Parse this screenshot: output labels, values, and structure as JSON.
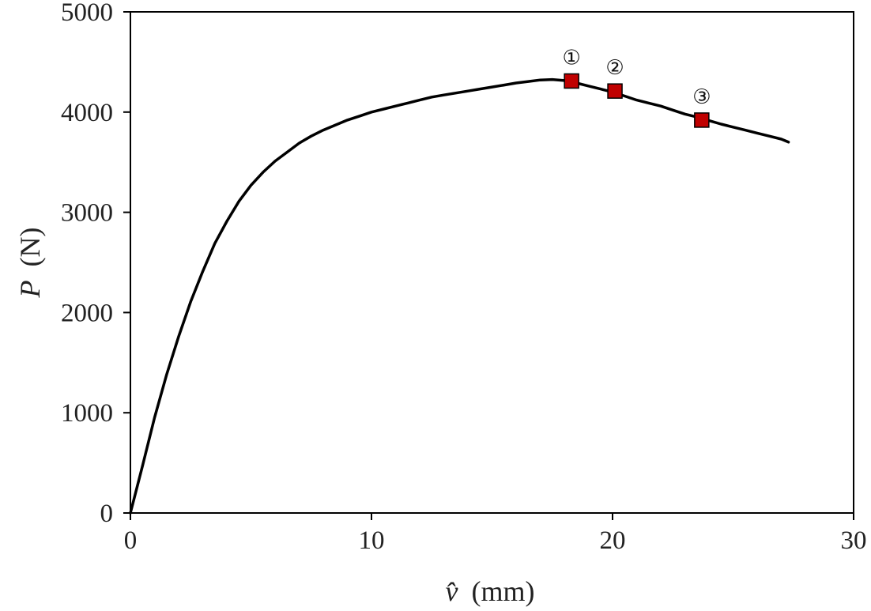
{
  "chart_data": {
    "type": "line",
    "title": "",
    "xlabel": "(mm)",
    "xlabel_symbol": "v̂",
    "ylabel": "(N)",
    "ylabel_symbol": "P",
    "xlim": [
      0,
      30
    ],
    "ylim": [
      0,
      5000
    ],
    "xticks": [
      "0",
      "10",
      "20",
      "30"
    ],
    "yticks": [
      "0",
      "1000",
      "2000",
      "3000",
      "4000",
      "5000"
    ],
    "grid": false,
    "legend": "none",
    "line_color": "#000000",
    "marker_color": "#c00000",
    "series": [
      {
        "x": [
          0,
          0.5,
          1,
          1.5,
          2,
          2.5,
          3,
          3.5,
          4,
          4.5,
          5,
          5.5,
          6,
          6.5,
          7,
          7.5,
          8,
          8.5,
          9,
          9.5,
          10,
          10.5,
          11,
          11.5,
          12,
          12.5,
          13,
          13.5,
          14,
          14.5,
          15,
          15.5,
          16,
          16.5,
          17,
          17.5,
          18,
          18.5,
          19,
          19.5,
          20,
          20.5,
          21,
          21.5,
          22,
          22.5,
          23,
          23.5,
          24,
          24.5,
          25,
          25.5,
          26,
          26.5,
          27,
          27.3
        ],
        "y": [
          0,
          470,
          950,
          1380,
          1760,
          2110,
          2410,
          2690,
          2910,
          3110,
          3270,
          3400,
          3510,
          3600,
          3690,
          3760,
          3820,
          3870,
          3920,
          3960,
          4000,
          4030,
          4060,
          4090,
          4120,
          4150,
          4170,
          4190,
          4210,
          4230,
          4250,
          4270,
          4290,
          4305,
          4320,
          4325,
          4315,
          4290,
          4260,
          4230,
          4200,
          4160,
          4120,
          4090,
          4060,
          4020,
          3980,
          3950,
          3915,
          3880,
          3850,
          3820,
          3790,
          3760,
          3730,
          3700
        ]
      }
    ],
    "annotations": [
      {
        "label": "①",
        "x": 18.3,
        "y": 4310
      },
      {
        "label": "②",
        "x": 20.1,
        "y": 4210
      },
      {
        "label": "③",
        "x": 23.7,
        "y": 3920
      }
    ]
  }
}
